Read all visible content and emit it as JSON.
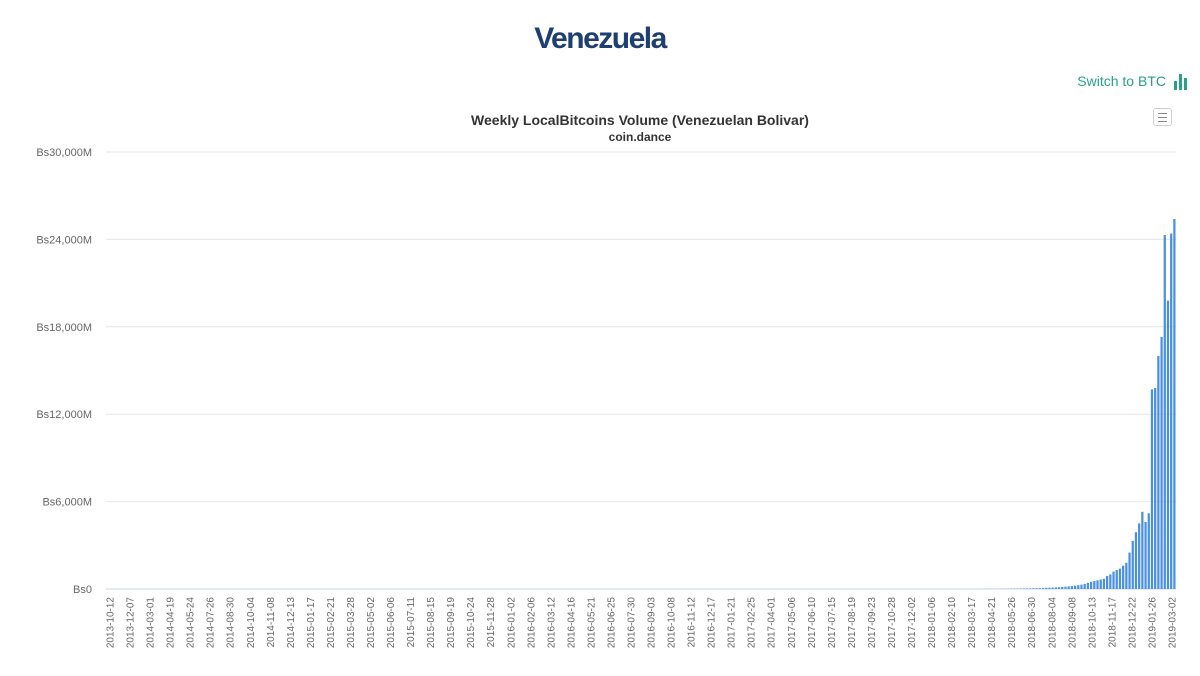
{
  "page": {
    "title": "Venezuela"
  },
  "switch": {
    "label": "Switch to BTC",
    "color": "#27a08c",
    "icon": "bar-chart-icon"
  },
  "menu": {
    "icon": "hamburger-menu-icon"
  },
  "chart_data": {
    "type": "bar",
    "title": "Weekly LocalBitcoins Volume (Venezuelan Bolivar)",
    "subtitle": "coin.dance",
    "xlabel": "",
    "ylabel": "",
    "ylim": [
      0,
      30000
    ],
    "y_unit": "millions of Bs",
    "y_ticks": [
      "Bs0",
      "Bs6,000M",
      "Bs12,000M",
      "Bs18,000M",
      "Bs24,000M",
      "Bs30,000M"
    ],
    "grid": true,
    "bar_color": "#4a90e2",
    "x_tick_labels": [
      "2013-10-12",
      "2013-12-07",
      "2014-03-01",
      "2014-04-19",
      "2014-05-24",
      "2014-07-26",
      "2014-08-30",
      "2014-10-04",
      "2014-11-08",
      "2014-12-13",
      "2015-01-17",
      "2015-02-21",
      "2015-03-28",
      "2015-05-02",
      "2015-06-06",
      "2015-07-11",
      "2015-08-15",
      "2015-09-19",
      "2015-10-24",
      "2015-11-28",
      "2016-01-02",
      "2016-02-06",
      "2016-03-12",
      "2016-04-16",
      "2016-05-21",
      "2016-06-25",
      "2016-07-30",
      "2016-09-03",
      "2016-10-08",
      "2016-11-12",
      "2016-12-17",
      "2017-01-21",
      "2017-02-25",
      "2017-04-01",
      "2017-05-06",
      "2017-06-10",
      "2017-07-15",
      "2017-08-19",
      "2017-09-23",
      "2017-10-28",
      "2017-12-02",
      "2018-01-06",
      "2018-02-10",
      "2018-03-17",
      "2018-04-21",
      "2018-05-26",
      "2018-06-30",
      "2018-08-04",
      "2018-09-08",
      "2018-10-13",
      "2018-11-17",
      "2018-12-22",
      "2019-01-26",
      "2019-03-02"
    ],
    "values": [
      0,
      0,
      0,
      0,
      0,
      0,
      0,
      0,
      0,
      0,
      0,
      0,
      0,
      0,
      0,
      0,
      0,
      0,
      0,
      0,
      0,
      0,
      0,
      0,
      0,
      0,
      0,
      0,
      0,
      0,
      0,
      0,
      0,
      0,
      0,
      0,
      0,
      0,
      0,
      0,
      0,
      0,
      0,
      0,
      0,
      0,
      0,
      0,
      0,
      0,
      0,
      0,
      0,
      0,
      0,
      0,
      0,
      0,
      0,
      0,
      0,
      0,
      0,
      0,
      0,
      0,
      0,
      0,
      0,
      0,
      0,
      0,
      0,
      0,
      0,
      0,
      0,
      0,
      0,
      0,
      0,
      0,
      0,
      0,
      0,
      0,
      0,
      0,
      0,
      0,
      0,
      0,
      0,
      0,
      0,
      0,
      0,
      0,
      0,
      0,
      0,
      0,
      0,
      0,
      0,
      0,
      0,
      0,
      0,
      0,
      0,
      0,
      0,
      0,
      0,
      0,
      0,
      0,
      0,
      0,
      0,
      0,
      0,
      0,
      0,
      0,
      0,
      0,
      0,
      0,
      0,
      0,
      0,
      0,
      0,
      0,
      0,
      0,
      0,
      0,
      0,
      0,
      0,
      0,
      0,
      0,
      0,
      0,
      0,
      0,
      0,
      0,
      0,
      0,
      0,
      0,
      0,
      0,
      0,
      0,
      0,
      0,
      0,
      0,
      0,
      0,
      0,
      0,
      0,
      0,
      0,
      0,
      0,
      0,
      0,
      0,
      0,
      0,
      0,
      0,
      0,
      0,
      0,
      0,
      0,
      0,
      0,
      0,
      0,
      0,
      0,
      0,
      0,
      0,
      0,
      0,
      0,
      0,
      0,
      0,
      0,
      0,
      0,
      0,
      0,
      0,
      0,
      0,
      0,
      0,
      0,
      0,
      0,
      0,
      0,
      0,
      0,
      0,
      0,
      0,
      0,
      0,
      0,
      0,
      0,
      0,
      0,
      0,
      0,
      0,
      0,
      0,
      0,
      0,
      0,
      0,
      0,
      0,
      0,
      0,
      0,
      0,
      0,
      0,
      0,
      0,
      0,
      0,
      0,
      0,
      0,
      0,
      0,
      0,
      0,
      0,
      0,
      0,
      0,
      0,
      0,
      0,
      0,
      0,
      0,
      0,
      0,
      0,
      0,
      0,
      0,
      0,
      5,
      5,
      8,
      8,
      10,
      10,
      12,
      15,
      15,
      18,
      20,
      25,
      25,
      30,
      35,
      40,
      45,
      50,
      55,
      60,
      70,
      80,
      90,
      100,
      110,
      120,
      140,
      160,
      180,
      200,
      230,
      260,
      300,
      350,
      420,
      500,
      550,
      600,
      650,
      700,
      900,
      1000,
      1200,
      1300,
      1400,
      1600,
      1800,
      2500,
      3300,
      3900,
      4500,
      5300,
      4600,
      5200,
      13700,
      13800,
      16000,
      17300,
      24300,
      19800,
      24400,
      25400
    ]
  }
}
